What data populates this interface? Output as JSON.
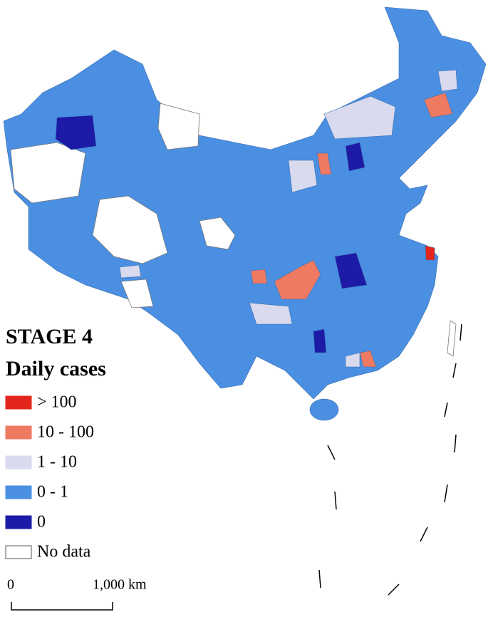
{
  "title": "STAGE 4",
  "legend": {
    "title": "Daily cases",
    "items": [
      {
        "label": "> 100",
        "color": "#e3261c"
      },
      {
        "label": "10 - 100",
        "color": "#ee7a62"
      },
      {
        "label": "1 - 10",
        "color": "#dadaee"
      },
      {
        "label": "0 - 1",
        "color": "#4a8fe2"
      },
      {
        "label": "0",
        "color": "#1c1aa6"
      },
      {
        "label": "No data",
        "color": "#ffffff"
      }
    ]
  },
  "scale_bar": {
    "start": "0",
    "end": "1,000 km"
  }
}
